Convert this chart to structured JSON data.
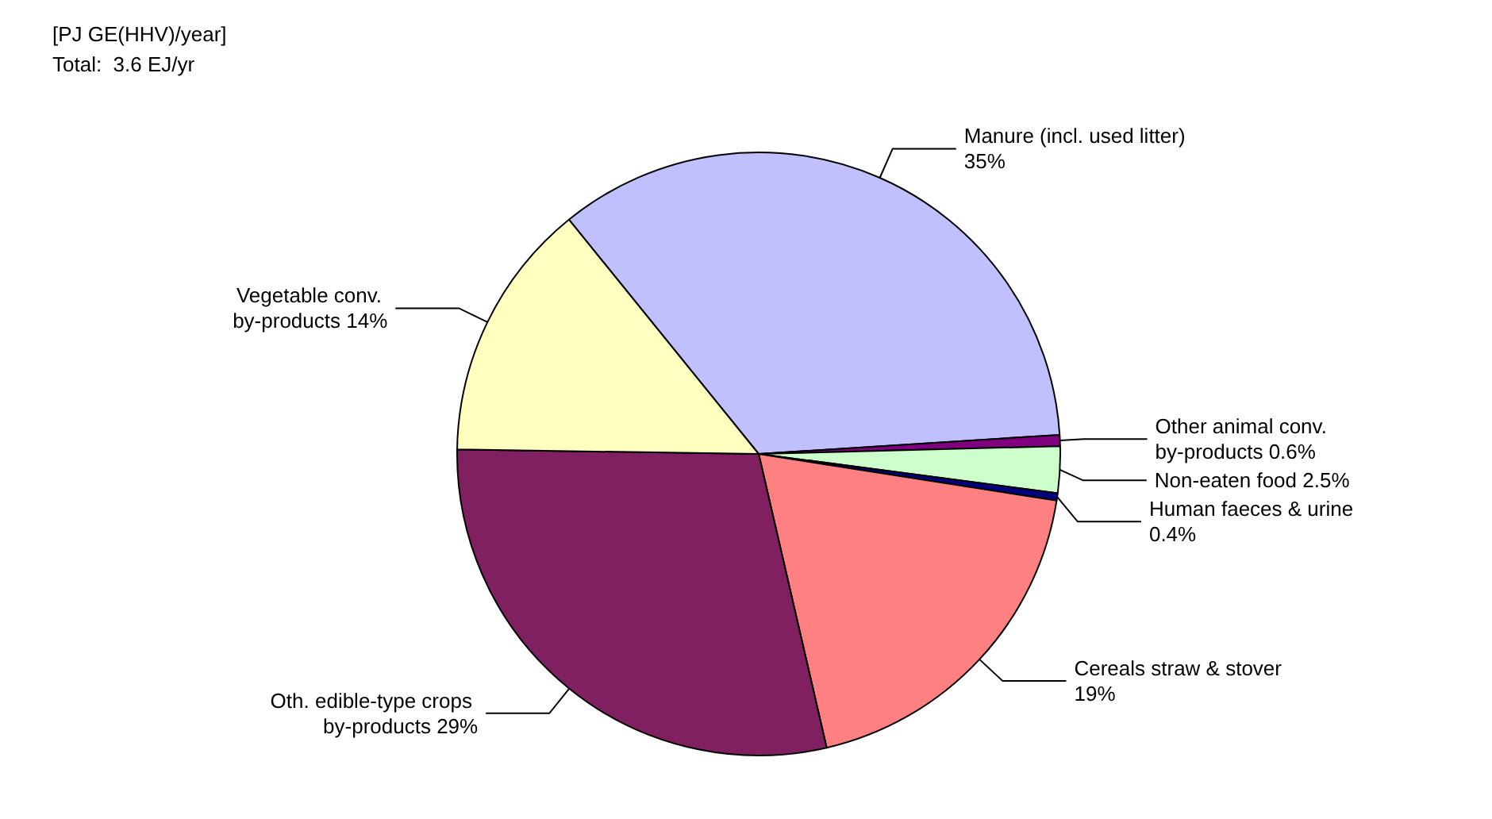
{
  "chart_data": {
    "type": "pie",
    "title": "[PJ GE(HHV)/year]",
    "subtitle": "Total:  3.6 EJ/yr",
    "categories": [
      "Manure (incl. used litter)",
      "Other animal conv. by-products",
      "Non-eaten food",
      "Human faeces & urine",
      "Cereals straw & stover",
      "Oth. edible-type crops by-products",
      "Vegetable conv. by-products"
    ],
    "values": [
      35,
      0.6,
      2.5,
      0.4,
      19,
      29,
      14
    ],
    "colors": [
      "#c0c0ff",
      "#800080",
      "#ccffcc",
      "#000080",
      "#ff8080",
      "#802060",
      "#ffffc0"
    ],
    "value_labels": [
      "35%",
      "0.6%",
      "2.5%",
      "0.4%",
      "19%",
      "29%",
      "14%"
    ],
    "legend": false
  }
}
